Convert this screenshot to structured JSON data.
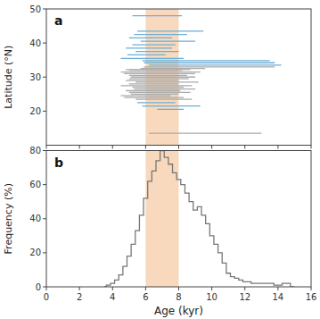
{
  "chart_data": [
    {
      "type": "segments",
      "annotation": "a",
      "y_label": "Latitude (°N)",
      "xlim": [
        0,
        16
      ],
      "xticks": [
        0,
        2,
        4,
        6,
        8,
        10,
        12,
        14,
        16
      ],
      "ylim": [
        10,
        50
      ],
      "yticks": [
        20,
        30,
        40,
        50
      ],
      "tick_labels": "y",
      "span": {
        "xmin": 6.0,
        "xmax": 8.0,
        "color": "#f5c49a"
      },
      "series": [
        {
          "color": "#6baed6",
          "x_start": [
            5.2,
            5.5,
            5.3,
            5.0,
            5.7,
            5.2,
            4.8,
            5.4,
            4.9,
            4.5,
            5.8,
            5.9,
            6.2,
            5.5,
            5.8,
            6.7
          ],
          "x_end": [
            8.2,
            9.5,
            8.5,
            7.6,
            9.0,
            7.8,
            7.6,
            8.0,
            7.2,
            8.3,
            13.5,
            13.8,
            14.2,
            7.8,
            9.3,
            8.3
          ],
          "values": [
            48,
            43.5,
            42.5,
            41.5,
            40.5,
            39.5,
            38.5,
            37.5,
            36.5,
            35.5,
            34.8,
            34.2,
            33.5,
            22.5,
            21.5,
            20.5
          ]
        },
        {
          "color": "#aaaaaa",
          "x_start": [
            4.5,
            4.7,
            5.0,
            5.1,
            5.0,
            4.8,
            5.4,
            5.0,
            4.5,
            5.2,
            5.3,
            4.8,
            5.0,
            5.1,
            4.5,
            4.7,
            5.4,
            5.0,
            5.7,
            5.9,
            4.8,
            6.2
          ],
          "x_end": [
            9.3,
            9.0,
            8.5,
            9.0,
            8.6,
            8.0,
            9.2,
            8.0,
            8.8,
            8.3,
            9.0,
            8.1,
            8.7,
            8.0,
            7.5,
            8.3,
            8.8,
            8.2,
            9.6,
            13.8,
            8.7,
            13.0
          ],
          "values": [
            31.5,
            31.0,
            30.5,
            30.0,
            29.5,
            29.0,
            28.5,
            28.0,
            27.5,
            27.0,
            26.5,
            26.0,
            25.5,
            25.0,
            24.5,
            24.0,
            23.5,
            32.0,
            32.5,
            33.0,
            32.2,
            13.5
          ]
        }
      ]
    },
    {
      "type": "step",
      "annotation": "b",
      "x_label": "Age (kyr)",
      "y_label": "Frequency (%)",
      "xlim": [
        0,
        16
      ],
      "xticks": [
        0,
        2,
        4,
        6,
        8,
        10,
        12,
        14,
        16
      ],
      "ylim": [
        0,
        80
      ],
      "yticks": [
        0,
        20,
        40,
        60,
        80
      ],
      "span": {
        "xmin": 6.0,
        "xmax": 8.0,
        "color": "#f5c49a"
      },
      "color": "#777777",
      "x": [
        3.5,
        3.75,
        4.0,
        4.25,
        4.5,
        4.75,
        5.0,
        5.25,
        5.5,
        5.75,
        6.0,
        6.25,
        6.5,
        6.75,
        7.0,
        7.25,
        7.5,
        7.75,
        8.0,
        8.25,
        8.5,
        8.75,
        9.0,
        9.25,
        9.5,
        9.75,
        10.0,
        10.25,
        10.5,
        10.75,
        11.0,
        11.25,
        11.5,
        11.75,
        12.0,
        12.25,
        12.5,
        13.0,
        13.5,
        14.0,
        14.5,
        15.0
      ],
      "values": [
        0,
        1,
        2,
        4,
        7,
        12,
        18,
        25,
        33,
        42,
        52,
        62,
        68,
        74,
        80,
        76,
        72,
        67,
        63,
        60,
        55,
        50,
        45,
        47,
        42,
        37,
        30,
        25,
        20,
        14,
        8,
        6,
        5,
        4,
        3,
        3,
        2,
        2,
        2,
        1,
        2,
        0
      ]
    }
  ]
}
